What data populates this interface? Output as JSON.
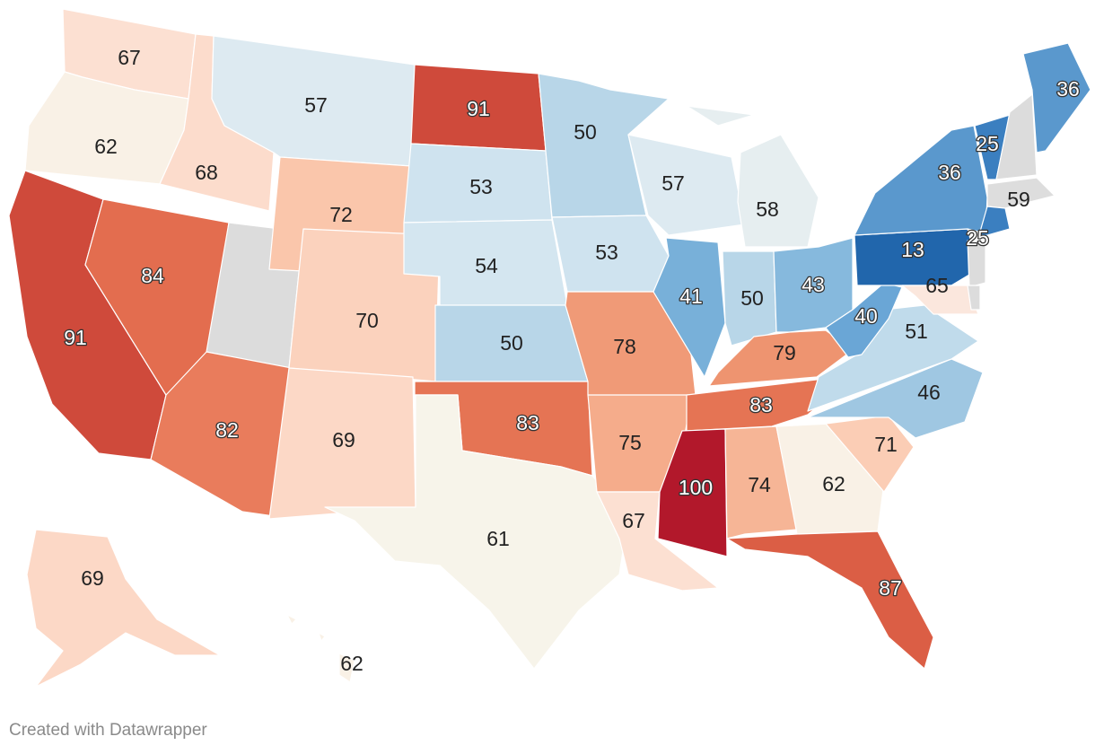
{
  "credit": "Created with Datawrapper",
  "colors": {
    "13": "#2166ac",
    "25": "#3b7fc0",
    "36": "#5a98cd",
    "40": "#6aa6d6",
    "41": "#78b0d9",
    "43": "#86b9dd",
    "46": "#9fc7e2",
    "50": "#b8d6e8",
    "51": "#c0dbeb",
    "53": "#cfe3ef",
    "54": "#d4e6f0",
    "57": "#ddeaf1",
    "58": "#e6eef0",
    "59": "#dddddd",
    "61": "#f7f4ea",
    "62": "#f9f1e6",
    "65": "#fbe7dd",
    "67": "#fce0d2",
    "68": "#fcdccc",
    "69": "#fcd8c6",
    "70": "#fbd2bd",
    "71": "#fbcdb5",
    "72": "#fac6ab",
    "74": "#f6b596",
    "75": "#f5ac8b",
    "78": "#f09a77",
    "79": "#ee9470",
    "82": "#e97c5c",
    "83": "#e57454",
    "84": "#e36d4f",
    "87": "#db5e45",
    "91": "#cf4a3b",
    "100": "#b2182b",
    "na": "#dcdcdc"
  },
  "chart_data": {
    "type": "choropleth",
    "region": "United States",
    "states": [
      {
        "id": "WA",
        "value": 67
      },
      {
        "id": "OR",
        "value": 62
      },
      {
        "id": "CA",
        "value": 91
      },
      {
        "id": "ID",
        "value": 68
      },
      {
        "id": "NV",
        "value": 84
      },
      {
        "id": "UT",
        "value": null
      },
      {
        "id": "AZ",
        "value": 82
      },
      {
        "id": "MT",
        "value": 57
      },
      {
        "id": "WY",
        "value": 72
      },
      {
        "id": "CO",
        "value": 70
      },
      {
        "id": "NM",
        "value": 69
      },
      {
        "id": "ND",
        "value": 91
      },
      {
        "id": "SD",
        "value": 53
      },
      {
        "id": "NE",
        "value": 54
      },
      {
        "id": "KS",
        "value": 50
      },
      {
        "id": "OK",
        "value": 83
      },
      {
        "id": "TX",
        "value": 61
      },
      {
        "id": "MN",
        "value": 50
      },
      {
        "id": "IA",
        "value": 53
      },
      {
        "id": "MO",
        "value": 78
      },
      {
        "id": "AR",
        "value": 75
      },
      {
        "id": "LA",
        "value": 67
      },
      {
        "id": "WI",
        "value": 57
      },
      {
        "id": "IL",
        "value": 41
      },
      {
        "id": "MI",
        "value": 58
      },
      {
        "id": "IN",
        "value": 50
      },
      {
        "id": "OH",
        "value": 43
      },
      {
        "id": "KY",
        "value": 79
      },
      {
        "id": "TN",
        "value": 83
      },
      {
        "id": "MS",
        "value": 100
      },
      {
        "id": "AL",
        "value": 74
      },
      {
        "id": "GA",
        "value": 62
      },
      {
        "id": "FL",
        "value": 87
      },
      {
        "id": "SC",
        "value": 71
      },
      {
        "id": "NC",
        "value": 46
      },
      {
        "id": "VA",
        "value": 51
      },
      {
        "id": "WV",
        "value": 40
      },
      {
        "id": "PA",
        "value": 13
      },
      {
        "id": "NY",
        "value": 36
      },
      {
        "id": "VT",
        "value": 25
      },
      {
        "id": "NH",
        "value": null
      },
      {
        "id": "ME",
        "value": 36
      },
      {
        "id": "MA",
        "value": 59
      },
      {
        "id": "CT",
        "value": 25
      },
      {
        "id": "NJ",
        "value": null
      },
      {
        "id": "MD",
        "value": 65
      },
      {
        "id": "DE",
        "value": null
      },
      {
        "id": "AK",
        "value": 69
      },
      {
        "id": "HI",
        "value": 62
      }
    ]
  }
}
